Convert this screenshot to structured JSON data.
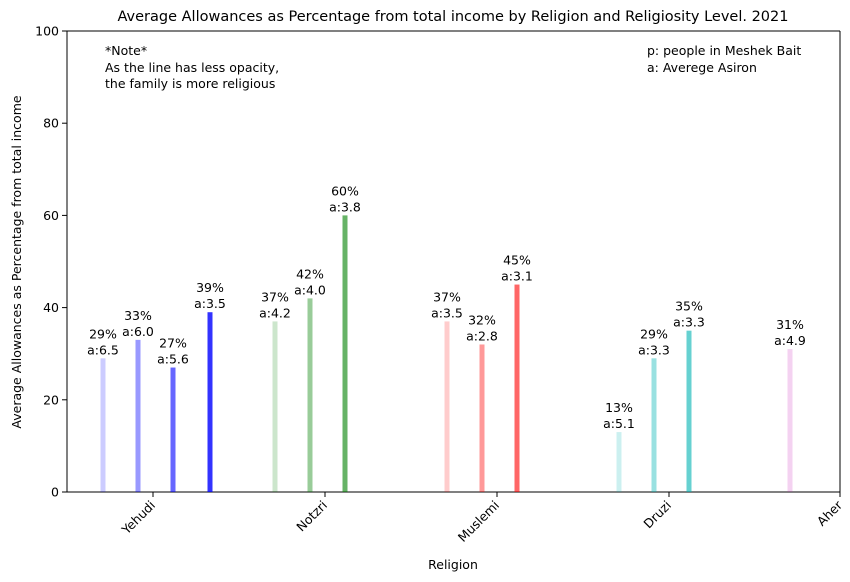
{
  "chart_data": {
    "type": "bar",
    "title": "Average Allowances as Percentage from total income by Religion and Religiosity Level. 2021",
    "xlabel": "Religion",
    "ylabel": "Average Allowances as Percentage from total income",
    "ylim": [
      0,
      100
    ],
    "yticks": [
      0,
      20,
      40,
      60,
      80,
      100
    ],
    "grid": false,
    "categories": [
      "Yehudi",
      "Notzri",
      "Muslemi",
      "Druzi",
      "Aher"
    ],
    "series": [
      {
        "category": "Yehudi",
        "color": "#0000ff",
        "bars": [
          {
            "value": 29,
            "opacity": 0.2,
            "label": "29%",
            "avg": "a:6.5"
          },
          {
            "value": 33,
            "opacity": 0.4,
            "label": "33%",
            "avg": "a:6.0"
          },
          {
            "value": 27,
            "opacity": 0.6,
            "label": "27%",
            "avg": "a:5.6"
          },
          {
            "value": 39,
            "opacity": 0.8,
            "label": "39%",
            "avg": "a:3.5"
          }
        ]
      },
      {
        "category": "Notzri",
        "color": "#008000",
        "bars": [
          {
            "value": 37,
            "opacity": 0.2,
            "label": "37%",
            "avg": "a:4.2"
          },
          {
            "value": 42,
            "opacity": 0.4,
            "label": "42%",
            "avg": "a:4.0"
          },
          {
            "value": 60,
            "opacity": 0.6,
            "label": "60%",
            "avg": "a:3.8"
          }
        ]
      },
      {
        "category": "Muslemi",
        "color": "#ff0000",
        "bars": [
          {
            "value": 37,
            "opacity": 0.2,
            "label": "37%",
            "avg": "a:3.5"
          },
          {
            "value": 32,
            "opacity": 0.4,
            "label": "32%",
            "avg": "a:2.8"
          },
          {
            "value": 45,
            "opacity": 0.6,
            "label": "45%",
            "avg": "a:3.1"
          }
        ]
      },
      {
        "category": "Druzi",
        "color": "#00b3b3",
        "bars": [
          {
            "value": 13,
            "opacity": 0.2,
            "label": "13%",
            "avg": "a:5.1"
          },
          {
            "value": 29,
            "opacity": 0.4,
            "label": "29%",
            "avg": "a:3.3"
          },
          {
            "value": 35,
            "opacity": 0.6,
            "label": "35%",
            "avg": "a:3.3"
          }
        ]
      },
      {
        "category": "Aher",
        "color": "#c71fb7",
        "bars": [
          {
            "value": 31,
            "opacity": 0.2,
            "label": "31%",
            "avg": "a:4.9"
          }
        ]
      }
    ],
    "annotations": {
      "note_lines": [
        "*Note*",
        "As the line has less opacity,",
        "the family is more religious"
      ],
      "legend_lines": [
        "p: people in Meshek Bait",
        "a: Averege Asiron"
      ]
    }
  }
}
